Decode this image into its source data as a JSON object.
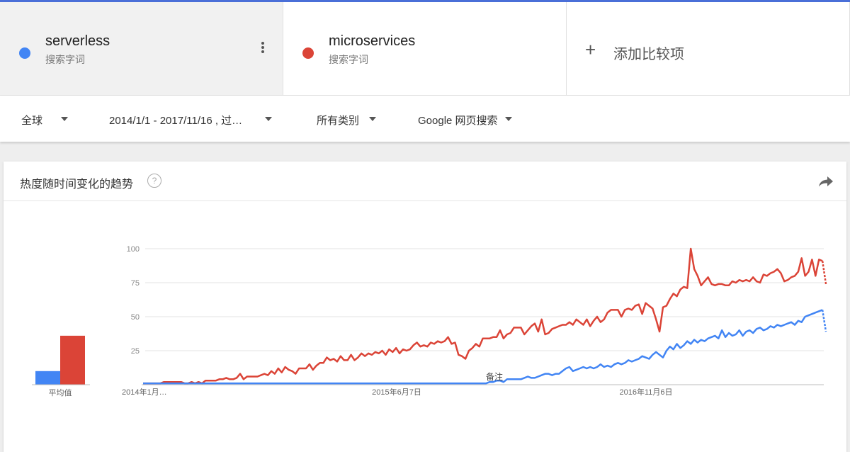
{
  "terms": [
    {
      "name": "serverless",
      "sub": "搜索字词",
      "color": "#4285f4"
    },
    {
      "name": "microservices",
      "sub": "搜索字词",
      "color": "#db4437"
    }
  ],
  "add_compare": "添加比较项",
  "filters": {
    "region": "全球",
    "date_range": "2014/1/1 - 2017/11/16 , 过…",
    "category": "所有类别",
    "search_type": "Google 网页搜索"
  },
  "card": {
    "title": "热度随时间变化的趋势",
    "help": "?",
    "avg_label": "平均值",
    "note_label": "备注"
  },
  "chart_data": {
    "type": "line",
    "title": "热度随时间变化的趋势",
    "ylim": [
      0,
      100
    ],
    "yticks": [
      "100",
      "75",
      "50",
      "25"
    ],
    "xticks": [
      "2014年1月…",
      "2015年6月7日",
      "2016年11月6日"
    ],
    "averages": [
      {
        "name": "serverless",
        "value": 10,
        "color": "#4285f4"
      },
      {
        "name": "microservices",
        "value": 36,
        "color": "#db4437"
      }
    ],
    "series": [
      {
        "name": "microservices",
        "color": "#db4437",
        "values": [
          1,
          1,
          1,
          1,
          1,
          1,
          2,
          2,
          2,
          2,
          2,
          2,
          1,
          1,
          2,
          1,
          2,
          1,
          3,
          3,
          3,
          3,
          4,
          4,
          5,
          4,
          4,
          5,
          8,
          4,
          6,
          6,
          6,
          6,
          7,
          8,
          7,
          10,
          8,
          12,
          9,
          13,
          11,
          10,
          8,
          12,
          12,
          12,
          15,
          11,
          14,
          16,
          16,
          20,
          18,
          19,
          17,
          21,
          18,
          18,
          22,
          18,
          20,
          23,
          21,
          23,
          22,
          24,
          23,
          25,
          22,
          26,
          24,
          27,
          23,
          26,
          25,
          26,
          29,
          31,
          28,
          29,
          28,
          31,
          30,
          32,
          31,
          32,
          35,
          30,
          31,
          22,
          21,
          19,
          25,
          27,
          30,
          28,
          34,
          34,
          34,
          35,
          35,
          40,
          34,
          37,
          38,
          42,
          42,
          42,
          37,
          40,
          43,
          45,
          39,
          48,
          37,
          38,
          41,
          42,
          43,
          44,
          44,
          46,
          44,
          48,
          46,
          44,
          48,
          43,
          47,
          50,
          46,
          48,
          53,
          55,
          55,
          55,
          50,
          55,
          56,
          55,
          58,
          59,
          52,
          60,
          58,
          56,
          48,
          39,
          57,
          58,
          63,
          67,
          65,
          70,
          72,
          71,
          100,
          85,
          80,
          73,
          76,
          79,
          74,
          73,
          74,
          74,
          73,
          73,
          76,
          75,
          77,
          76,
          77,
          76,
          79,
          76,
          75,
          81,
          80,
          82,
          83,
          85,
          82,
          76,
          77,
          79,
          80,
          83,
          93,
          80,
          83,
          92,
          80,
          92,
          91,
          74
        ]
      },
      {
        "name": "serverless",
        "color": "#4285f4",
        "values": [
          1,
          1,
          1,
          1,
          1,
          1,
          1,
          1,
          1,
          1,
          1,
          1,
          1,
          1,
          1,
          1,
          1,
          1,
          1,
          1,
          1,
          1,
          1,
          1,
          1,
          1,
          1,
          1,
          1,
          1,
          1,
          1,
          1,
          1,
          1,
          1,
          1,
          1,
          1,
          1,
          1,
          1,
          1,
          1,
          1,
          1,
          1,
          1,
          1,
          1,
          1,
          1,
          1,
          1,
          1,
          1,
          1,
          1,
          1,
          1,
          1,
          1,
          1,
          1,
          1,
          1,
          1,
          1,
          1,
          1,
          1,
          1,
          1,
          1,
          1,
          1,
          1,
          1,
          1,
          1,
          1,
          1,
          1,
          1,
          1,
          1,
          1,
          1,
          1,
          1,
          1,
          1,
          1,
          1,
          1,
          1,
          1,
          1,
          1,
          1,
          2,
          2,
          3,
          3,
          2,
          4,
          4,
          4,
          4,
          4,
          5,
          6,
          5,
          5,
          6,
          7,
          8,
          8,
          7,
          8,
          8,
          10,
          12,
          13,
          10,
          11,
          12,
          13,
          12,
          13,
          12,
          13,
          15,
          13,
          14,
          13,
          15,
          16,
          15,
          16,
          18,
          17,
          18,
          19,
          21,
          20,
          19,
          22,
          24,
          22,
          20,
          25,
          28,
          26,
          30,
          27,
          29,
          32,
          30,
          33,
          31,
          33,
          32,
          34,
          35,
          36,
          34,
          40,
          35,
          38,
          36,
          37,
          40,
          36,
          39,
          40,
          38,
          41,
          42,
          40,
          41,
          43,
          42,
          44,
          43,
          44,
          45,
          46,
          44,
          47,
          46,
          50,
          51,
          52,
          53,
          54,
          55,
          39
        ]
      }
    ]
  }
}
